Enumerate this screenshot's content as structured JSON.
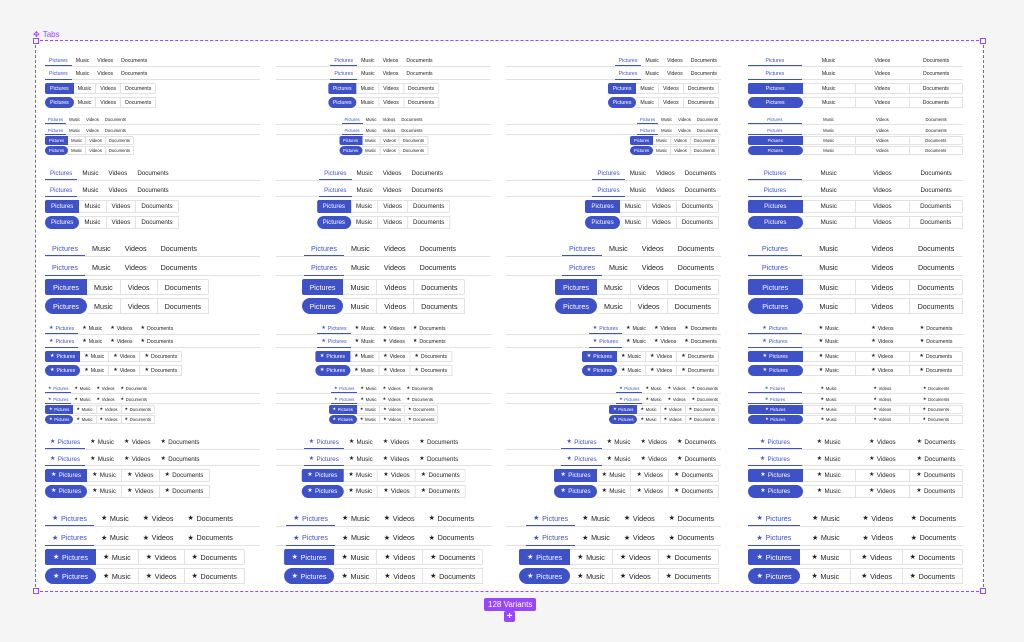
{
  "component": {
    "title": "Tabs",
    "variants_label": "128 Variants",
    "add_label": "+"
  },
  "tabs": [
    "Pictures",
    "Music",
    "Videos",
    "Documents"
  ],
  "icon": "star-icon",
  "colors": {
    "accent": "#3f51c7",
    "frame": "#9747ff",
    "divider": "#e2e2e2"
  },
  "grid": {
    "columns": [
      "start",
      "center",
      "end",
      "fill"
    ],
    "groups": [
      {
        "icon": false,
        "size": "s"
      },
      {
        "icon": false,
        "size": "xs"
      },
      {
        "icon": false,
        "size": "m"
      },
      {
        "icon": false,
        "size": "l"
      },
      {
        "icon": true,
        "size": "s"
      },
      {
        "icon": true,
        "size": "xs"
      },
      {
        "icon": true,
        "size": "m"
      },
      {
        "icon": true,
        "size": "l"
      }
    ],
    "styles": [
      "line",
      "lined",
      "fill",
      "pill"
    ]
  }
}
